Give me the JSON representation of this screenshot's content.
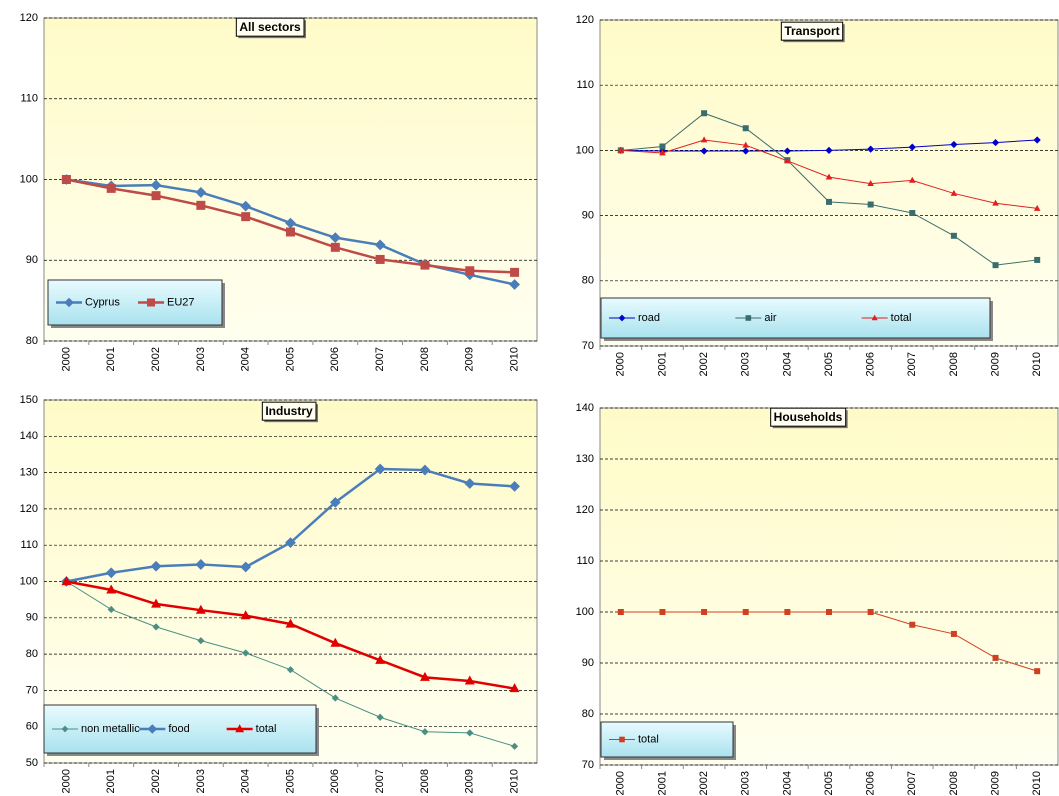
{
  "chart_data": [
    {
      "type": "line",
      "title": "All sectors",
      "categories": [
        "2000",
        "2001",
        "2002",
        "2003",
        "2004",
        "2005",
        "2006",
        "2007",
        "2008",
        "2009",
        "2010"
      ],
      "series": [
        {
          "name": "Cyprus",
          "color": "#4a7ebb",
          "marker": "diamond",
          "width": 2.5,
          "values": [
            100,
            99.2,
            99.3,
            98.4,
            96.7,
            94.6,
            92.8,
            91.9,
            89.5,
            88.2,
            87.0
          ]
        },
        {
          "name": "EU27",
          "color": "#be4b48",
          "marker": "square",
          "width": 2.5,
          "values": [
            100,
            98.9,
            98.0,
            96.8,
            95.4,
            93.5,
            91.6,
            90.1,
            89.4,
            88.7,
            88.5
          ]
        }
      ],
      "ylim": [
        80,
        120
      ],
      "yticks": [
        80,
        90,
        100,
        110,
        120
      ],
      "grid": true,
      "legend": "bottom-left"
    },
    {
      "type": "line",
      "title": "Transport",
      "categories": [
        "2000",
        "2001",
        "2002",
        "2003",
        "2004",
        "2005",
        "2006",
        "2007",
        "2008",
        "2009",
        "2010"
      ],
      "series": [
        {
          "name": "road",
          "color": "#0000cc",
          "marker": "diamond",
          "width": 1,
          "values": [
            100,
            99.9,
            99.9,
            99.9,
            99.9,
            100.0,
            100.2,
            100.5,
            100.9,
            101.2,
            101.6
          ]
        },
        {
          "name": "air",
          "color": "#3a6e6e",
          "marker": "square",
          "width": 1,
          "values": [
            100,
            100.6,
            105.7,
            103.4,
            98.5,
            92.1,
            91.7,
            90.4,
            86.9,
            82.4,
            83.2
          ]
        },
        {
          "name": "total",
          "color": "#e02020",
          "marker": "triangle",
          "width": 1,
          "values": [
            100,
            99.6,
            101.6,
            100.8,
            98.4,
            95.9,
            94.9,
            95.4,
            93.4,
            91.9,
            91.1
          ]
        }
      ],
      "ylim": [
        70,
        120
      ],
      "yticks": [
        70,
        80,
        90,
        100,
        110,
        120
      ],
      "grid": true,
      "legend": "bottom-left"
    },
    {
      "type": "line",
      "title": "Industry",
      "categories": [
        "2000",
        "2001",
        "2002",
        "2003",
        "2004",
        "2005",
        "2006",
        "2007",
        "2008",
        "2009",
        "2010"
      ],
      "series": [
        {
          "name": "non metallic",
          "color": "#4b8f84",
          "marker": "diamond",
          "width": 1,
          "values": [
            100,
            92.3,
            87.5,
            83.7,
            80.3,
            75.7,
            67.9,
            62.6,
            58.6,
            58.3,
            54.6
          ]
        },
        {
          "name": "food",
          "color": "#4a7ebb",
          "marker": "diamond",
          "width": 2.5,
          "values": [
            100,
            102.4,
            104.2,
            104.7,
            104.0,
            110.7,
            121.8,
            131.0,
            130.7,
            127.0,
            126.2
          ]
        },
        {
          "name": "total",
          "color": "#e00000",
          "marker": "triangle",
          "width": 2.5,
          "values": [
            100,
            97.7,
            93.8,
            92.1,
            90.6,
            88.3,
            83.0,
            78.3,
            73.6,
            72.6,
            70.5
          ]
        }
      ],
      "ylim": [
        50,
        150
      ],
      "yticks": [
        50,
        60,
        70,
        80,
        90,
        100,
        110,
        120,
        130,
        140,
        150
      ],
      "grid": true,
      "legend": "bottom-left"
    },
    {
      "type": "line",
      "title": "Households",
      "categories": [
        "2000",
        "2001",
        "2002",
        "2003",
        "2004",
        "2005",
        "2006",
        "2007",
        "2008",
        "2009",
        "2010"
      ],
      "series": [
        {
          "name": "total",
          "color": "#d04020",
          "marker": "square",
          "width": 1,
          "values": [
            100,
            100,
            100,
            100,
            100,
            100,
            100,
            97.5,
            95.7,
            91.0,
            88.4
          ]
        }
      ],
      "ylim": [
        70,
        140
      ],
      "yticks": [
        70,
        80,
        90,
        100,
        110,
        120,
        130,
        140
      ],
      "grid": true,
      "legend": "bottom-left"
    }
  ]
}
